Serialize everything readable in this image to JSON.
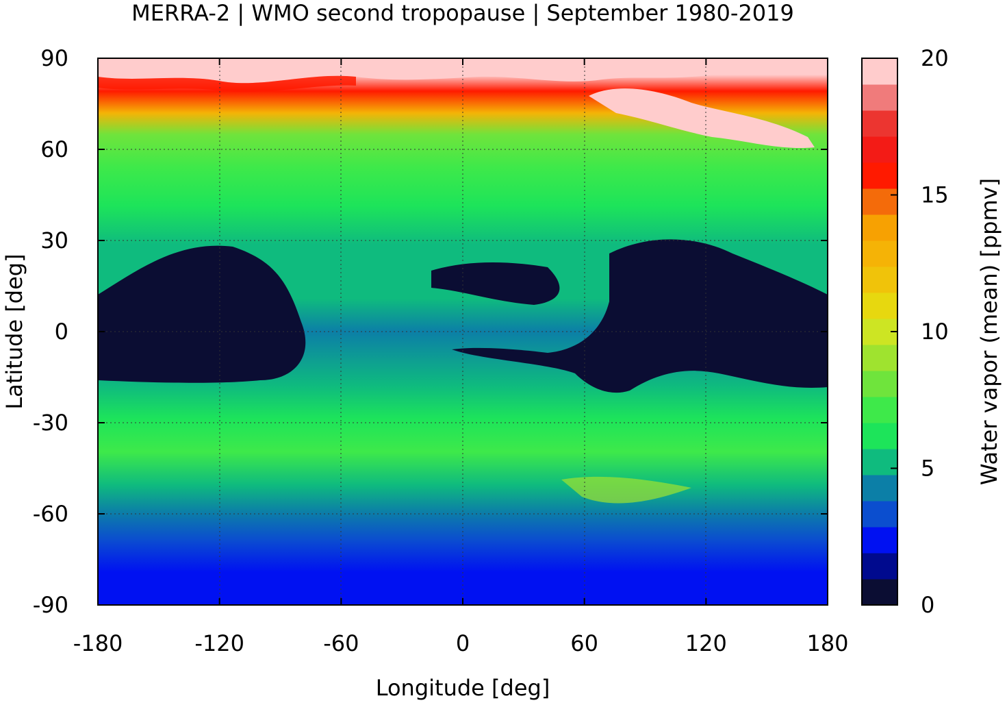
{
  "chart_data": {
    "type": "heatmap",
    "title": "MERRA-2 | WMO second tropopause | September 1980-2019",
    "xlabel": "Longitude [deg]",
    "ylabel": "Latitude [deg]",
    "xlim": [
      -180,
      180
    ],
    "ylim": [
      -90,
      90
    ],
    "x_ticks": [
      -180,
      -120,
      -60,
      0,
      60,
      120,
      180
    ],
    "y_ticks": [
      90,
      60,
      30,
      0,
      -30,
      -60,
      -90
    ],
    "grid": true,
    "colorbar": {
      "label": "Water vapor (mean) [ppmv]",
      "range": [
        0,
        20
      ],
      "ticks": [
        0,
        5,
        10,
        15,
        20
      ],
      "colors": [
        "#0b0d33",
        "#000a8e",
        "#0011f2",
        "#0b4ecf",
        "#0c7fa7",
        "#0fbb7e",
        "#1de45a",
        "#3ee94a",
        "#6fe43c",
        "#9fe32f",
        "#cde523",
        "#e7d80f",
        "#f0c30a",
        "#f5b306",
        "#f7a102",
        "#f46b0a",
        "#ff1a00",
        "#f31b16",
        "#ec3530",
        "#f07b7b",
        "#ffcccc"
      ]
    },
    "zonal_mean_approx": {
      "latitude": [
        -90,
        -80,
        -70,
        -60,
        -50,
        -40,
        -30,
        -20,
        -10,
        0,
        10,
        20,
        30,
        40,
        50,
        60,
        70,
        80,
        90
      ],
      "water_vapor_ppmv": [
        2.5,
        2.6,
        3.6,
        4.5,
        5.8,
        6.5,
        6.2,
        5.0,
        2.5,
        4.2,
        2.0,
        4.6,
        5.6,
        6.4,
        6.8,
        7.8,
        9.5,
        14,
        19
      ]
    }
  }
}
